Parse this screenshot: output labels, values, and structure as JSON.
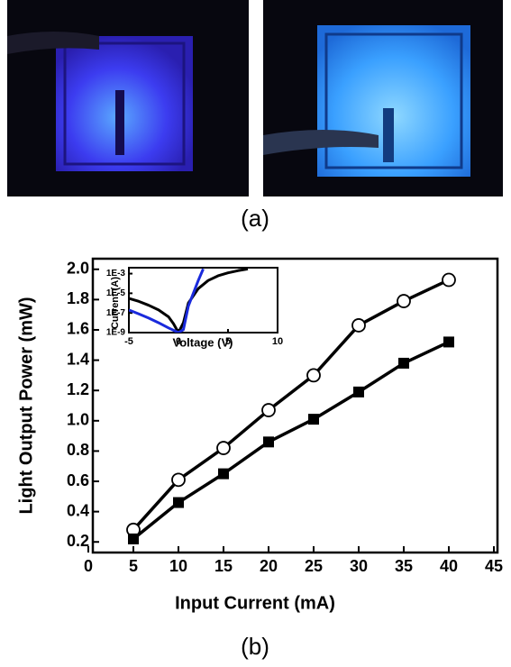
{
  "panel_labels": [
    "(a)",
    "(b)"
  ],
  "chart_data": [
    {
      "type": "line",
      "xlabel": "Input Current (mA)",
      "ylabel": "Light Output Power (mW)",
      "x": [
        5,
        10,
        15,
        20,
        25,
        30,
        35,
        40
      ],
      "series": [
        {
          "color": "#000000",
          "marker": "circle-open",
          "values": [
            0.28,
            0.61,
            0.82,
            1.07,
            1.3,
            1.63,
            1.79,
            1.93
          ]
        },
        {
          "color": "#000000",
          "marker": "square",
          "values": [
            0.22,
            0.46,
            0.65,
            0.86,
            1.01,
            1.19,
            1.38,
            1.52
          ]
        }
      ],
      "xlim": [
        0,
        45
      ],
      "xticks": [
        0,
        5,
        10,
        15,
        20,
        25,
        30,
        35,
        40,
        45
      ],
      "ylim": [
        0.13,
        2.07
      ],
      "yticks": [
        0.2,
        0.4,
        0.6,
        0.8,
        {
          "value": 1,
          "label": "1.0"
        },
        1.2,
        1.4,
        1.6,
        1.8,
        {
          "value": 2,
          "label": "2.0"
        }
      ]
    },
    {
      "type": "line",
      "log_y": true,
      "xlabel": "Voltage (V)",
      "ylabel": "Current (A)",
      "series": [
        {
          "color": "#000000",
          "x": [
            -5,
            -4,
            -3,
            -2,
            -1,
            -0.5,
            0,
            0.5,
            1,
            2,
            3,
            4,
            5,
            6,
            7
          ],
          "values": [
            3e-06,
            1.5e-06,
            6e-07,
            2e-07,
            4e-08,
            8e-09,
            1e-09,
            1e-08,
            1e-06,
            3e-05,
            0.0002,
            0.0006,
            0.0012,
            0.002,
            0.003
          ]
        },
        {
          "color": "#1a2adc",
          "x": [
            -5,
            -4,
            -3,
            -2,
            -1,
            0,
            0.5,
            1,
            1.5,
            2,
            2.5
          ],
          "values": [
            2e-07,
            8e-08,
            3e-08,
            1e-08,
            3e-09,
            1e-09,
            2e-09,
            5e-07,
            1e-05,
            0.0002,
            0.003
          ]
        }
      ],
      "xlim": [
        -5,
        10
      ],
      "xticks": [
        -5,
        0,
        5,
        10
      ],
      "ylim": [
        1e-09,
        0.004
      ],
      "yticks": [
        {
          "value": 0.001,
          "label": "1E-3"
        },
        {
          "value": 1e-05,
          "label": "1E-5"
        },
        {
          "value": 1e-07,
          "label": "1E-7"
        },
        {
          "value": 1e-09,
          "label": "1E-9"
        }
      ]
    }
  ]
}
